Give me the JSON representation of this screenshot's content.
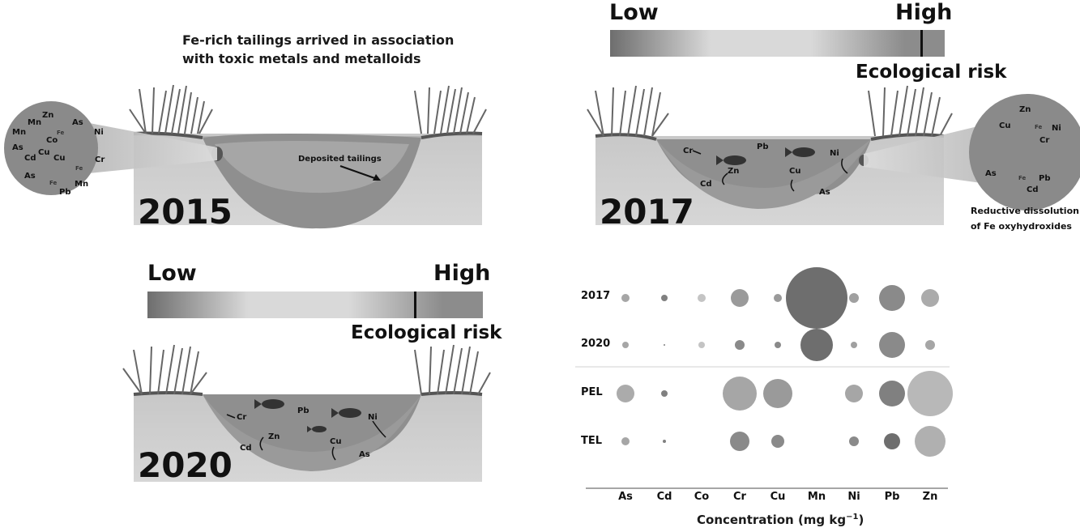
{
  "panel_2015": {
    "caption_line1": "Fe-rich tailings arrived in association",
    "caption_line2": "with toxic metals and metalloids",
    "year": "2015",
    "deposit_label": "Deposited tailings",
    "inset_elements": [
      "Zn",
      "Mn",
      "Mn",
      "As",
      "Co",
      "Cd",
      "Cu",
      "As",
      "Ni",
      "Cu",
      "Cr",
      "As",
      "Fe",
      "Mn",
      "Pb",
      "Fe",
      "Fe"
    ]
  },
  "panel_2017": {
    "scale_low": "Low",
    "scale_high": "High",
    "risk_label": "Ecological risk",
    "year": "2017",
    "elements": {
      "cr": "Cr",
      "pb": "Pb",
      "zn": "Zn",
      "ni": "Ni",
      "cu": "Cu",
      "cd": "Cd",
      "as": "As"
    },
    "inset_elements": {
      "zn": "Zn",
      "cu": "Cu",
      "fe1": "Fe",
      "ni": "Ni",
      "cr": "Cr",
      "as": "As",
      "fe2": "Fe",
      "pb": "Pb",
      "cd": "Cd"
    },
    "note_line1": "Reductive dissolution",
    "note_line2": "of Fe oxyhydroxides",
    "risk_marker": 0.93
  },
  "panel_2020": {
    "scale_low": "Low",
    "scale_high": "High",
    "risk_label": "Ecological risk",
    "year": "2020",
    "elements": {
      "cr": "Cr",
      "pb": "Pb",
      "zn": "Zn",
      "ni": "Ni",
      "cu": "Cu",
      "cd": "Cd",
      "as": "As"
    },
    "risk_marker": 0.8
  },
  "chart_data": {
    "type": "bubble",
    "xlabel": "Concentration (mg kg⁻¹)",
    "xlabel_base": "Concentration (mg kg",
    "xlabel_sup": "−1",
    "xlabel_end": ")",
    "categories": [
      "As",
      "Cd",
      "Co",
      "Cr",
      "Cu",
      "Mn",
      "Ni",
      "Pb",
      "Zn"
    ],
    "rows": [
      {
        "name": "2017",
        "radii": [
          5,
          4,
          5,
          11,
          5,
          38,
          6,
          16,
          11
        ],
        "shades": [
          "#a6a6a6",
          "#808080",
          "#c4c4c4",
          "#9a9a9a",
          "#9a9a9a",
          "#6e6e6e",
          "#a0a0a0",
          "#8a8a8a",
          "#ababab"
        ]
      },
      {
        "name": "2020",
        "radii": [
          4,
          1,
          4,
          6,
          4,
          20,
          4,
          16,
          6
        ],
        "shades": [
          "#a6a6a6",
          "#808080",
          "#c4c4c4",
          "#8a8a8a",
          "#8a8a8a",
          "#6e6e6e",
          "#a0a0a0",
          "#8a8a8a",
          "#a6a6a6"
        ]
      },
      {
        "name": "PEL",
        "radii": [
          11,
          4,
          0,
          21,
          18,
          0,
          11,
          16,
          28
        ],
        "shades": [
          "#ababab",
          "#808080",
          "#ffffff",
          "#a6a6a6",
          "#9a9a9a",
          "#ffffff",
          "#a6a6a6",
          "#808080",
          "#b8b8b8"
        ]
      },
      {
        "name": "TEL",
        "radii": [
          5,
          2,
          0,
          12,
          8,
          0,
          6,
          10,
          19
        ],
        "shades": [
          "#a6a6a6",
          "#808080",
          "#ffffff",
          "#8a8a8a",
          "#8a8a8a",
          "#ffffff",
          "#8a8a8a",
          "#6e6e6e",
          "#b0b0b0"
        ]
      }
    ]
  }
}
